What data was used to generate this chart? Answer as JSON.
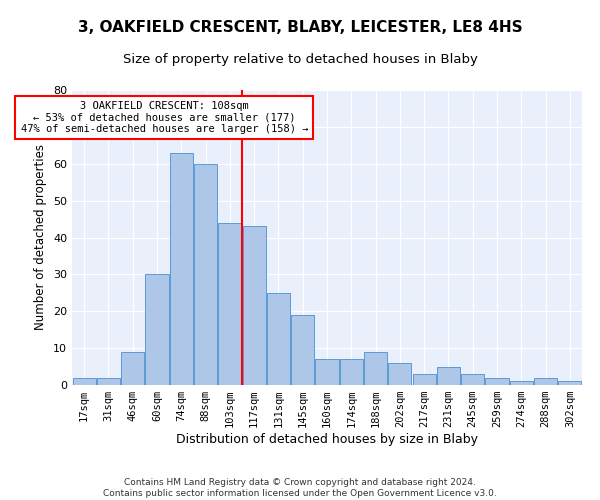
{
  "title1": "3, OAKFIELD CRESCENT, BLABY, LEICESTER, LE8 4HS",
  "title2": "Size of property relative to detached houses in Blaby",
  "xlabel": "Distribution of detached houses by size in Blaby",
  "ylabel": "Number of detached properties",
  "bin_labels": [
    "17sqm",
    "31sqm",
    "46sqm",
    "60sqm",
    "74sqm",
    "88sqm",
    "103sqm",
    "117sqm",
    "131sqm",
    "145sqm",
    "160sqm",
    "174sqm",
    "188sqm",
    "202sqm",
    "217sqm",
    "231sqm",
    "245sqm",
    "259sqm",
    "274sqm",
    "288sqm",
    "302sqm"
  ],
  "bar_heights": [
    2,
    2,
    9,
    30,
    63,
    60,
    44,
    43,
    25,
    19,
    7,
    7,
    9,
    6,
    3,
    5,
    3,
    2,
    1,
    2,
    1
  ],
  "bar_color": "#aec6e8",
  "bar_edge_color": "#5b9bd5",
  "vline_pos": 6.5,
  "vline_color": "red",
  "ylim": [
    0,
    80
  ],
  "yticks": [
    0,
    10,
    20,
    30,
    40,
    50,
    60,
    70,
    80
  ],
  "annotation_text": "3 OAKFIELD CRESCENT: 108sqm\n← 53% of detached houses are smaller (177)\n47% of semi-detached houses are larger (158) →",
  "annotation_box_color": "white",
  "annotation_box_edge": "red",
  "footer": "Contains HM Land Registry data © Crown copyright and database right 2024.\nContains public sector information licensed under the Open Government Licence v3.0.",
  "bg_color": "#eaf0fb",
  "grid_color": "white",
  "title1_fontsize": 11,
  "title2_fontsize": 9.5,
  "xlabel_fontsize": 9,
  "ylabel_fontsize": 8.5,
  "tick_fontsize": 7.5,
  "annot_fontsize": 7.5,
  "footer_fontsize": 6.5
}
